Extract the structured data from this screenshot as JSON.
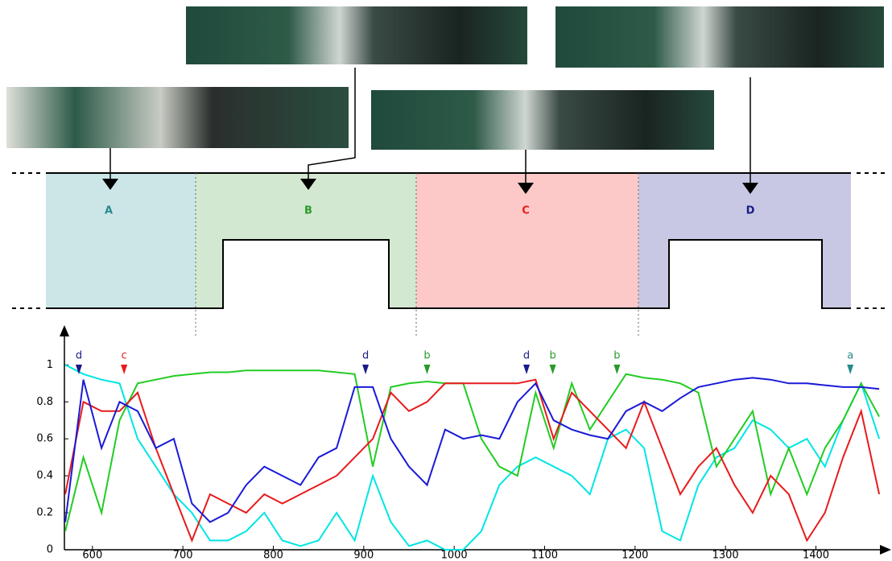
{
  "regions": [
    {
      "label": "A",
      "color": "#2a8a8a"
    },
    {
      "label": "B",
      "color": "#2a9a2a"
    },
    {
      "label": "C",
      "color": "#e81a1a"
    },
    {
      "label": "D",
      "color": "#1a1a8a"
    }
  ],
  "chart_data": {
    "type": "line",
    "x": [
      570,
      590,
      610,
      630,
      650,
      670,
      690,
      710,
      730,
      750,
      770,
      790,
      810,
      830,
      850,
      870,
      890,
      910,
      930,
      950,
      970,
      990,
      1010,
      1030,
      1050,
      1070,
      1090,
      1110,
      1130,
      1150,
      1170,
      1190,
      1210,
      1230,
      1250,
      1270,
      1290,
      1310,
      1330,
      1350,
      1370,
      1390,
      1410,
      1430,
      1450,
      1470
    ],
    "series": [
      {
        "color": "#00e5e5",
        "values": [
          1,
          0.95,
          0.92,
          0.9,
          0.6,
          0.45,
          0.3,
          0.2,
          0.05,
          0.05,
          0.1,
          0.2,
          0.05,
          0.02,
          0.05,
          0.2,
          0.05,
          0.4,
          0.15,
          0.02,
          0.05,
          0,
          0,
          0.1,
          0.35,
          0.45,
          0.5,
          0.45,
          0.4,
          0.3,
          0.6,
          0.65,
          0.55,
          0.1,
          0.05,
          0.35,
          0.5,
          0.55,
          0.7,
          0.65,
          0.55,
          0.6,
          0.45,
          0.7,
          0.9,
          0.6
        ]
      },
      {
        "color": "#22cc22",
        "values": [
          0.1,
          0.5,
          0.2,
          0.7,
          0.9,
          0.92,
          0.94,
          0.95,
          0.96,
          0.96,
          0.97,
          0.97,
          0.97,
          0.97,
          0.97,
          0.96,
          0.95,
          0.45,
          0.88,
          0.9,
          0.91,
          0.9,
          0.9,
          0.6,
          0.45,
          0.4,
          0.85,
          0.55,
          0.9,
          0.65,
          0.8,
          0.95,
          0.93,
          0.92,
          0.9,
          0.85,
          0.45,
          0.6,
          0.75,
          0.3,
          0.55,
          0.3,
          0.55,
          0.7,
          0.9,
          0.72
        ]
      },
      {
        "color": "#e81a1a",
        "values": [
          0.3,
          0.8,
          0.75,
          0.75,
          0.85,
          0.55,
          0.3,
          0.05,
          0.3,
          0.25,
          0.2,
          0.3,
          0.25,
          0.3,
          0.35,
          0.4,
          0.5,
          0.6,
          0.85,
          0.75,
          0.8,
          0.9,
          0.9,
          0.9,
          0.9,
          0.9,
          0.92,
          0.6,
          0.85,
          0.75,
          0.65,
          0.55,
          0.8,
          0.55,
          0.3,
          0.45,
          0.55,
          0.35,
          0.2,
          0.4,
          0.3,
          0.05,
          0.2,
          0.5,
          0.75,
          0.3
        ]
      },
      {
        "color": "#1a1ad8",
        "values": [
          0.15,
          0.92,
          0.55,
          0.8,
          0.75,
          0.55,
          0.6,
          0.25,
          0.15,
          0.2,
          0.35,
          0.45,
          0.4,
          0.35,
          0.5,
          0.55,
          0.88,
          0.88,
          0.6,
          0.45,
          0.35,
          0.65,
          0.6,
          0.62,
          0.6,
          0.8,
          0.9,
          0.7,
          0.65,
          0.62,
          0.6,
          0.75,
          0.8,
          0.75,
          0.82,
          0.88,
          0.9,
          0.92,
          0.93,
          0.92,
          0.9,
          0.9,
          0.89,
          0.88,
          0.88,
          0.87
        ]
      }
    ],
    "xlim": [
      569,
      1477
    ],
    "ylim": [
      0,
      1.18
    ],
    "xticks": [
      600,
      700,
      800,
      900,
      1000,
      1100,
      1200,
      1300,
      1400
    ],
    "yticks": [
      0,
      0.2,
      0.4,
      0.6,
      0.8,
      1
    ],
    "annotations": [
      {
        "text": "d",
        "x": 585,
        "color": "#1a1a8a"
      },
      {
        "text": "c",
        "x": 635,
        "color": "#e81a1a"
      },
      {
        "text": "d",
        "x": 902,
        "color": "#1a1a8a"
      },
      {
        "text": "b",
        "x": 970,
        "color": "#2a9a2a"
      },
      {
        "text": "d",
        "x": 1080,
        "color": "#1a1a8a"
      },
      {
        "text": "b",
        "x": 1109,
        "color": "#2a9a2a"
      },
      {
        "text": "b",
        "x": 1180,
        "color": "#2a9a2a"
      },
      {
        "text": "a",
        "x": 1438,
        "color": "#2a8a8a"
      }
    ]
  }
}
